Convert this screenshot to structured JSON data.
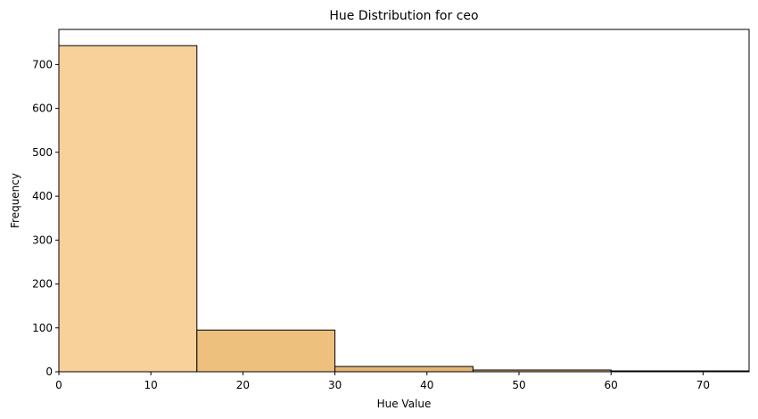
{
  "chart_data": {
    "type": "bar",
    "title": "Hue Distribution for ceo",
    "xlabel": "Hue Value",
    "ylabel": "Frequency",
    "xlim": [
      0,
      75
    ],
    "ylim": [
      0,
      780
    ],
    "grid": false,
    "bins": [
      {
        "x0": 0,
        "x1": 15,
        "value": 743,
        "color": "#f8d19a"
      },
      {
        "x0": 15,
        "x1": 30,
        "value": 95,
        "color": "#eec07d"
      },
      {
        "x0": 30,
        "x1": 45,
        "value": 12,
        "color": "#e3b572"
      },
      {
        "x0": 45,
        "x1": 60,
        "value": 4,
        "color": "#d9aa6a"
      },
      {
        "x0": 60,
        "x1": 75,
        "value": 2,
        "color": "#cfa062"
      }
    ],
    "xticks": [
      0,
      10,
      20,
      30,
      40,
      50,
      60,
      70
    ],
    "yticks": [
      0,
      100,
      200,
      300,
      400,
      500,
      600,
      700
    ]
  }
}
